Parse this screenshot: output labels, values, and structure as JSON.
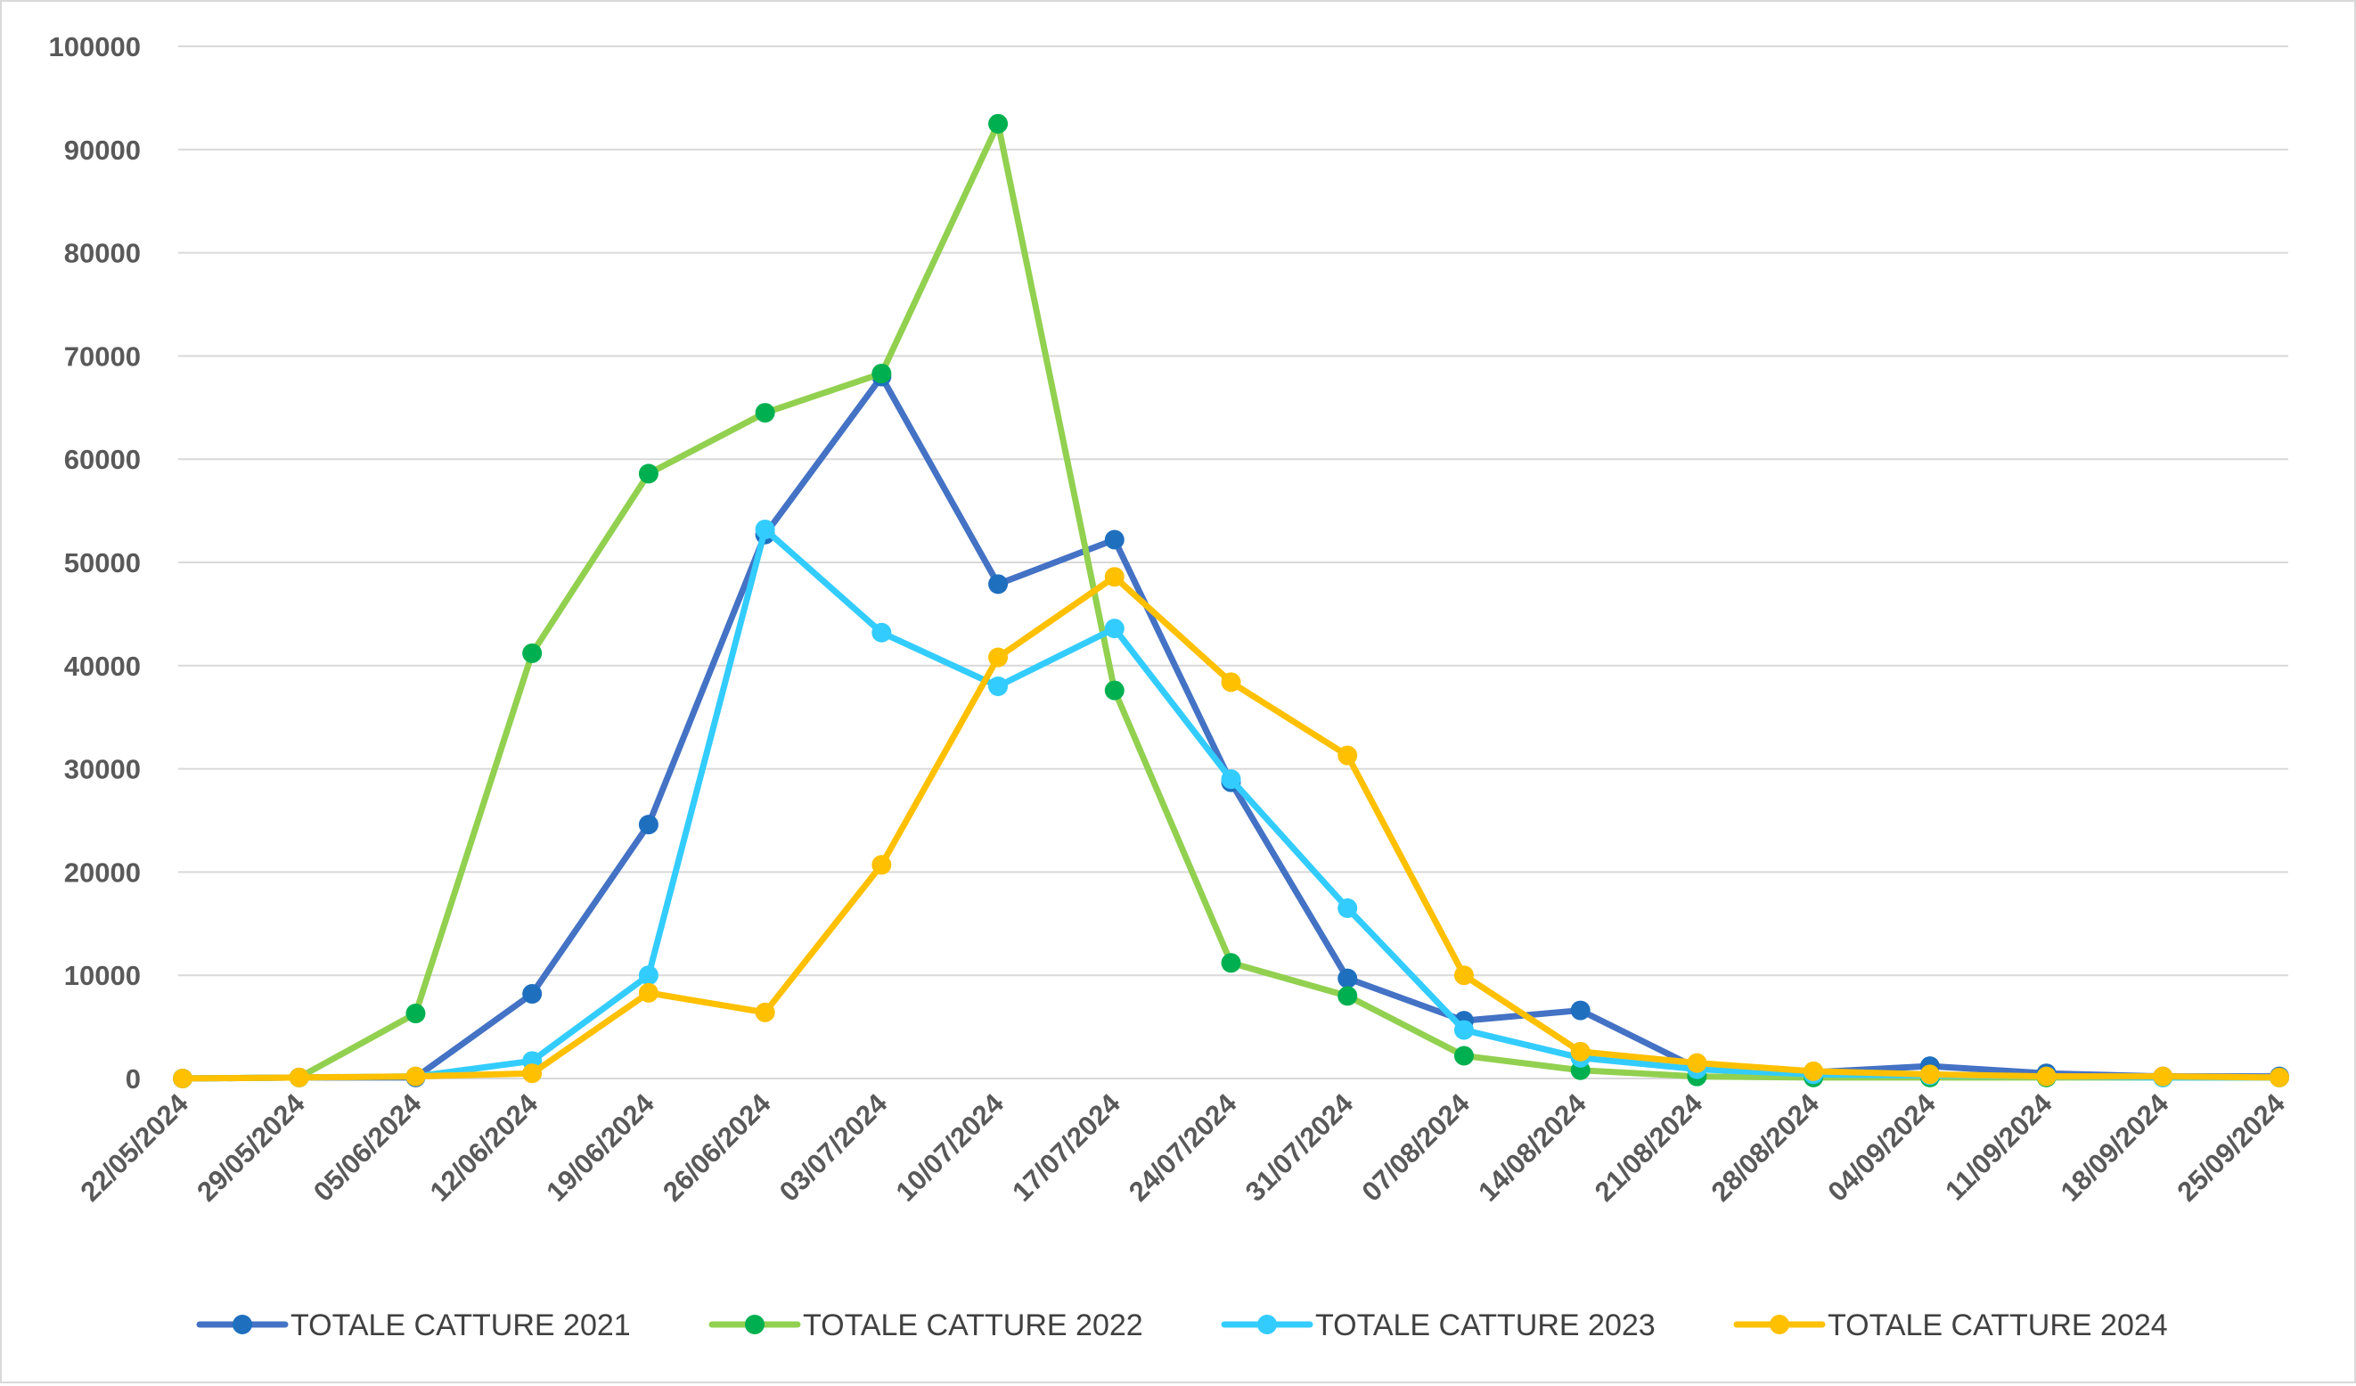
{
  "chart_data": {
    "type": "line",
    "title": "",
    "xlabel": "",
    "ylabel": "",
    "ylim": [
      0,
      100000
    ],
    "y_ticks": [
      "0",
      "10000",
      "20000",
      "30000",
      "40000",
      "50000",
      "60000",
      "70000",
      "80000",
      "90000",
      "100000"
    ],
    "categories": [
      "22/05/2024",
      "29/05/2024",
      "05/06/2024",
      "12/06/2024",
      "19/06/2024",
      "26/06/2024",
      "03/07/2024",
      "10/07/2024",
      "17/07/2024",
      "24/07/2024",
      "31/07/2024",
      "07/08/2024",
      "14/08/2024",
      "21/08/2024",
      "28/08/2024",
      "04/09/2024",
      "11/09/2024",
      "18/09/2024",
      "25/09/2024"
    ],
    "grid": "horizontal",
    "legend_position": "bottom",
    "series": [
      {
        "name": "TOTALE CATTURE 2021",
        "line_color": "#4472C4",
        "marker_color": "#1F6FBF",
        "values": [
          0,
          100,
          100,
          8200,
          24600,
          52700,
          68000,
          47900,
          52200,
          28700,
          9700,
          5600,
          6600,
          1000,
          600,
          1200,
          500,
          200,
          200
        ]
      },
      {
        "name": "TOTALE CATTURE 2022",
        "line_color": "#92D050",
        "marker_color": "#00B050",
        "values": [
          0,
          100,
          6300,
          41200,
          58600,
          64500,
          68300,
          92500,
          37600,
          11200,
          8000,
          2200,
          800,
          200,
          100,
          100,
          100,
          100,
          100
        ]
      },
      {
        "name": "TOTALE CATTURE 2023",
        "line_color": "#33CCFF",
        "marker_color": "#33CCFF",
        "values": [
          0,
          100,
          200,
          1700,
          10000,
          53200,
          43200,
          38000,
          43600,
          29000,
          16500,
          4700,
          2000,
          900,
          400,
          300,
          200,
          100,
          100
        ]
      },
      {
        "name": "TOTALE CATTURE 2024",
        "line_color": "#FFC000",
        "marker_color": "#FFC000",
        "values": [
          0,
          100,
          200,
          500,
          8300,
          6400,
          20700,
          40800,
          48600,
          38400,
          31300,
          10000,
          2600,
          1500,
          700,
          400,
          200,
          200,
          100
        ]
      }
    ]
  }
}
